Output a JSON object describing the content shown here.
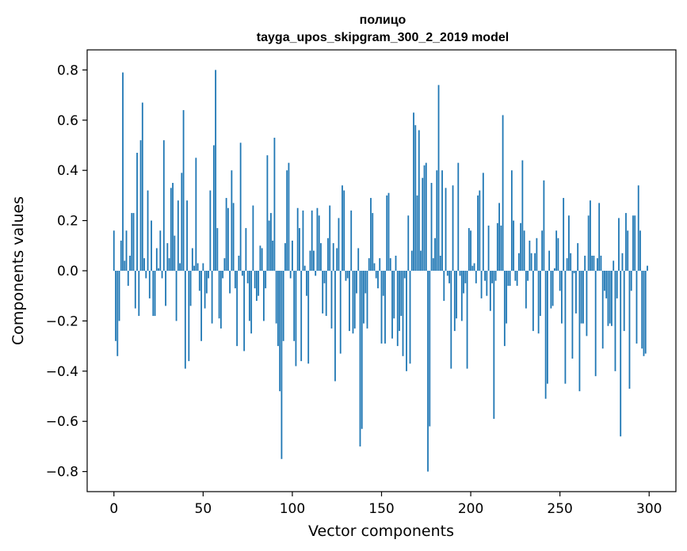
{
  "chart_data": {
    "type": "bar",
    "title_line1": "полицо",
    "title_line2": "tayga_upos_skipgram_300_2_2019 model",
    "xlabel": "Vector components",
    "ylabel": "Components values",
    "xlim": [
      -15,
      315
    ],
    "ylim": [
      -0.88,
      0.88
    ],
    "xticks": [
      0,
      50,
      100,
      150,
      200,
      250,
      300
    ],
    "yticks": [
      -0.8,
      -0.6,
      -0.4,
      -0.2,
      0.0,
      0.2,
      0.4,
      0.6,
      0.8
    ],
    "ytick_labels": [
      "−0.8",
      "−0.6",
      "−0.4",
      "−0.2",
      "0.0",
      "0.2",
      "0.4",
      "0.6",
      "0.8"
    ],
    "bar_color": "#1f77b4",
    "grid": false,
    "values": [
      0.16,
      -0.28,
      -0.34,
      -0.2,
      0.12,
      0.79,
      0.04,
      0.16,
      -0.06,
      0.06,
      0.23,
      0.23,
      -0.15,
      0.47,
      -0.18,
      0.52,
      0.67,
      0.05,
      -0.03,
      0.32,
      -0.11,
      0.2,
      -0.18,
      -0.18,
      0.09,
      0.01,
      0.16,
      -0.03,
      0.52,
      -0.14,
      0.11,
      0.05,
      0.33,
      0.35,
      0.14,
      -0.2,
      0.28,
      0.03,
      0.39,
      0.64,
      -0.39,
      0.28,
      -0.36,
      -0.14,
      0.09,
      0.02,
      0.45,
      0.03,
      -0.08,
      -0.28,
      0.03,
      -0.15,
      -0.09,
      -0.03,
      0.32,
      -0.21,
      0.5,
      0.8,
      0.17,
      -0.19,
      -0.23,
      -0.03,
      0.05,
      0.29,
      0.25,
      -0.09,
      0.4,
      0.27,
      -0.07,
      -0.3,
      0.06,
      0.51,
      -0.02,
      -0.32,
      0.17,
      -0.05,
      -0.2,
      -0.25,
      0.26,
      -0.07,
      -0.12,
      -0.1,
      0.1,
      0.09,
      -0.2,
      -0.07,
      0.46,
      0.2,
      0.23,
      0.12,
      0.53,
      -0.21,
      -0.3,
      -0.48,
      -0.75,
      -0.28,
      0.11,
      0.4,
      0.43,
      -0.03,
      0.12,
      -0.28,
      -0.38,
      0.25,
      0.17,
      -0.36,
      0.24,
      0.02,
      -0.1,
      -0.37,
      0.08,
      0.24,
      0.08,
      -0.02,
      0.25,
      0.22,
      0.11,
      -0.17,
      -0.05,
      -0.18,
      0.13,
      0.26,
      -0.23,
      0.11,
      -0.44,
      0.09,
      0.21,
      -0.33,
      0.34,
      0.32,
      -0.04,
      -0.03,
      -0.24,
      0.24,
      -0.25,
      -0.23,
      -0.09,
      0.09,
      -0.7,
      -0.63,
      -0.21,
      -0.09,
      -0.23,
      0.05,
      0.29,
      0.23,
      0.03,
      -0.03,
      -0.07,
      0.05,
      -0.29,
      -0.1,
      -0.29,
      0.3,
      0.31,
      0.05,
      -0.27,
      -0.19,
      0.06,
      -0.3,
      -0.24,
      -0.18,
      -0.34,
      -0.03,
      -0.4,
      0.22,
      -0.37,
      0.08,
      0.63,
      0.58,
      0.3,
      0.56,
      0.08,
      0.37,
      0.42,
      0.43,
      -0.8,
      -0.62,
      0.35,
      0.05,
      0.13,
      0.4,
      0.74,
      0.06,
      0.4,
      -0.12,
      0.33,
      -0.02,
      -0.05,
      -0.39,
      0.34,
      -0.24,
      -0.19,
      0.43,
      -0.02,
      -0.2,
      -0.09,
      -0.05,
      -0.39,
      0.17,
      0.16,
      0.02,
      0.03,
      -0.05,
      0.3,
      0.32,
      -0.11,
      0.39,
      -0.04,
      -0.1,
      0.18,
      -0.16,
      -0.05,
      -0.59,
      -0.04,
      0.19,
      0.27,
      0.18,
      0.62,
      -0.3,
      -0.21,
      -0.06,
      -0.06,
      0.4,
      0.2,
      -0.04,
      -0.06,
      0.07,
      0.19,
      0.44,
      0.16,
      -0.15,
      -0.04,
      0.12,
      0.07,
      -0.24,
      0.07,
      0.13,
      -0.25,
      -0.18,
      0.16,
      0.36,
      -0.51,
      -0.45,
      0.08,
      -0.15,
      -0.14,
      0.01,
      0.16,
      0.13,
      -0.08,
      -0.21,
      0.29,
      -0.45,
      0.05,
      0.22,
      0.07,
      -0.35,
      -0.01,
      -0.17,
      0.11,
      -0.48,
      -0.21,
      -0.21,
      0.06,
      -0.26,
      0.22,
      0.28,
      0.06,
      0.06,
      -0.42,
      0.05,
      0.27,
      0.06,
      -0.31,
      -0.08,
      -0.11,
      -0.22,
      -0.21,
      -0.22,
      0.04,
      -0.4,
      -0.11,
      0.21,
      -0.66,
      0.07,
      -0.24,
      0.23,
      0.16,
      -0.47,
      -0.08,
      0.22,
      0.22,
      -0.29,
      0.34,
      0.16,
      -0.31,
      -0.34,
      -0.33,
      0.02
    ]
  }
}
